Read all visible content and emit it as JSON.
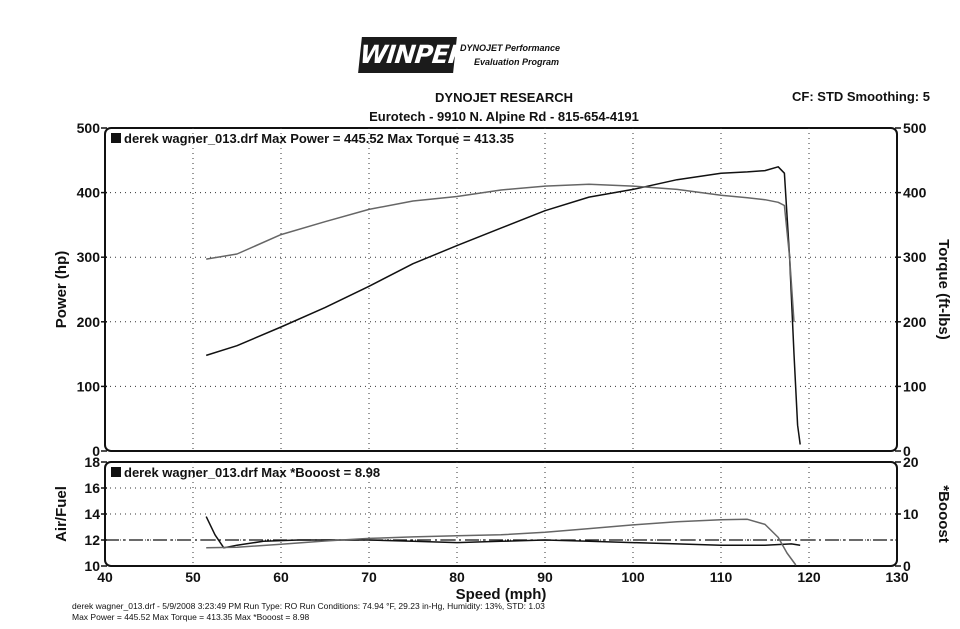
{
  "logo": {
    "text": "WINPEP",
    "line1": "DYNOJET Performance",
    "line2": "Evaluation Program"
  },
  "header": {
    "title": "DYNOJET RESEARCH",
    "subtitle": "Eurotech - 9910 N. Alpine Rd - 815-654-4191",
    "settings": "CF: STD  Smoothing: 5"
  },
  "footer": {
    "line1": "derek wagner_013.drf - 5/9/2008 3:23:49 PM  Run Type: RO  Run Conditions: 74.94 °F, 29.23 in-Hg,  Humidity:  13%, STD: 1.03",
    "line2": "Max Power = 445.52  Max Torque = 413.35  Max *Booost = 8.98"
  },
  "chart_data": [
    {
      "type": "line",
      "legend": "derek wagner_013.drf Max Power = 445.52     Max Torque = 413.35",
      "ylabel": "Power (hp)",
      "y2label": "Torque (ft-lbs)",
      "xlim": [
        40,
        130
      ],
      "ylim": [
        0,
        500
      ],
      "y2lim": [
        0,
        500
      ],
      "xticks": [
        40,
        50,
        60,
        70,
        80,
        90,
        100,
        110,
        120,
        130
      ],
      "yticks": [
        0,
        100,
        200,
        300,
        400,
        500
      ],
      "y2ticks": [
        0,
        100,
        200,
        300,
        400,
        500
      ],
      "grid": true,
      "series": [
        {
          "axis": "left",
          "color": "#111111",
          "x": [
            51.5,
            55,
            60,
            65,
            70,
            75,
            80,
            85,
            90,
            95,
            100,
            105,
            110,
            113,
            115,
            116.5,
            117.2,
            117.8,
            118.3,
            118.7,
            119
          ],
          "y": [
            148,
            163,
            192,
            222,
            255,
            290,
            318,
            345,
            372,
            393,
            405,
            420,
            430,
            432,
            434,
            440,
            430,
            300,
            150,
            40,
            10
          ]
        },
        {
          "axis": "right",
          "color": "#666666",
          "x": [
            51.5,
            55,
            60,
            65,
            70,
            75,
            80,
            85,
            90,
            95,
            100,
            105,
            110,
            113,
            115,
            116.5,
            117.2,
            117.8,
            118.3
          ],
          "y": [
            297,
            305,
            335,
            355,
            374,
            387,
            394,
            404,
            410,
            413,
            410,
            405,
            396,
            392,
            389,
            385,
            380,
            300,
            200
          ]
        }
      ]
    },
    {
      "type": "line",
      "legend": "derek wagner_013.drf Max *Booost = 8.98",
      "ylabel": "Air/Fuel",
      "y2label": "*Booost",
      "xlabel": "Speed (mph)",
      "xlim": [
        40,
        130
      ],
      "ylim": [
        10,
        18
      ],
      "y2lim": [
        0,
        20
      ],
      "xticks": [
        40,
        50,
        60,
        70,
        80,
        90,
        100,
        110,
        120,
        130
      ],
      "yticks": [
        10,
        12,
        14,
        16,
        18
      ],
      "y2ticks": [
        0,
        10,
        20
      ],
      "grid": true,
      "reference_y": 12,
      "series": [
        {
          "axis": "left",
          "color": "#111111",
          "x": [
            51.5,
            52.5,
            53.5,
            55,
            58,
            62,
            66,
            70,
            75,
            80,
            85,
            90,
            95,
            100,
            105,
            110,
            115,
            118,
            119
          ],
          "y": [
            13.8,
            12.4,
            11.4,
            11.6,
            11.9,
            12.0,
            12.0,
            12.0,
            11.9,
            11.8,
            11.9,
            12.0,
            11.9,
            11.8,
            11.7,
            11.6,
            11.6,
            11.7,
            11.6
          ]
        },
        {
          "axis": "right",
          "color": "#666666",
          "x": [
            51.5,
            55,
            60,
            65,
            70,
            75,
            80,
            85,
            90,
            95,
            100,
            105,
            110,
            113,
            115,
            116.5,
            117.5,
            118.5
          ],
          "y": [
            3.5,
            3.6,
            4.2,
            4.8,
            5.3,
            5.6,
            5.8,
            6.0,
            6.5,
            7.2,
            7.9,
            8.5,
            8.9,
            8.98,
            8.0,
            5.5,
            2.5,
            0.2
          ]
        }
      ]
    }
  ]
}
